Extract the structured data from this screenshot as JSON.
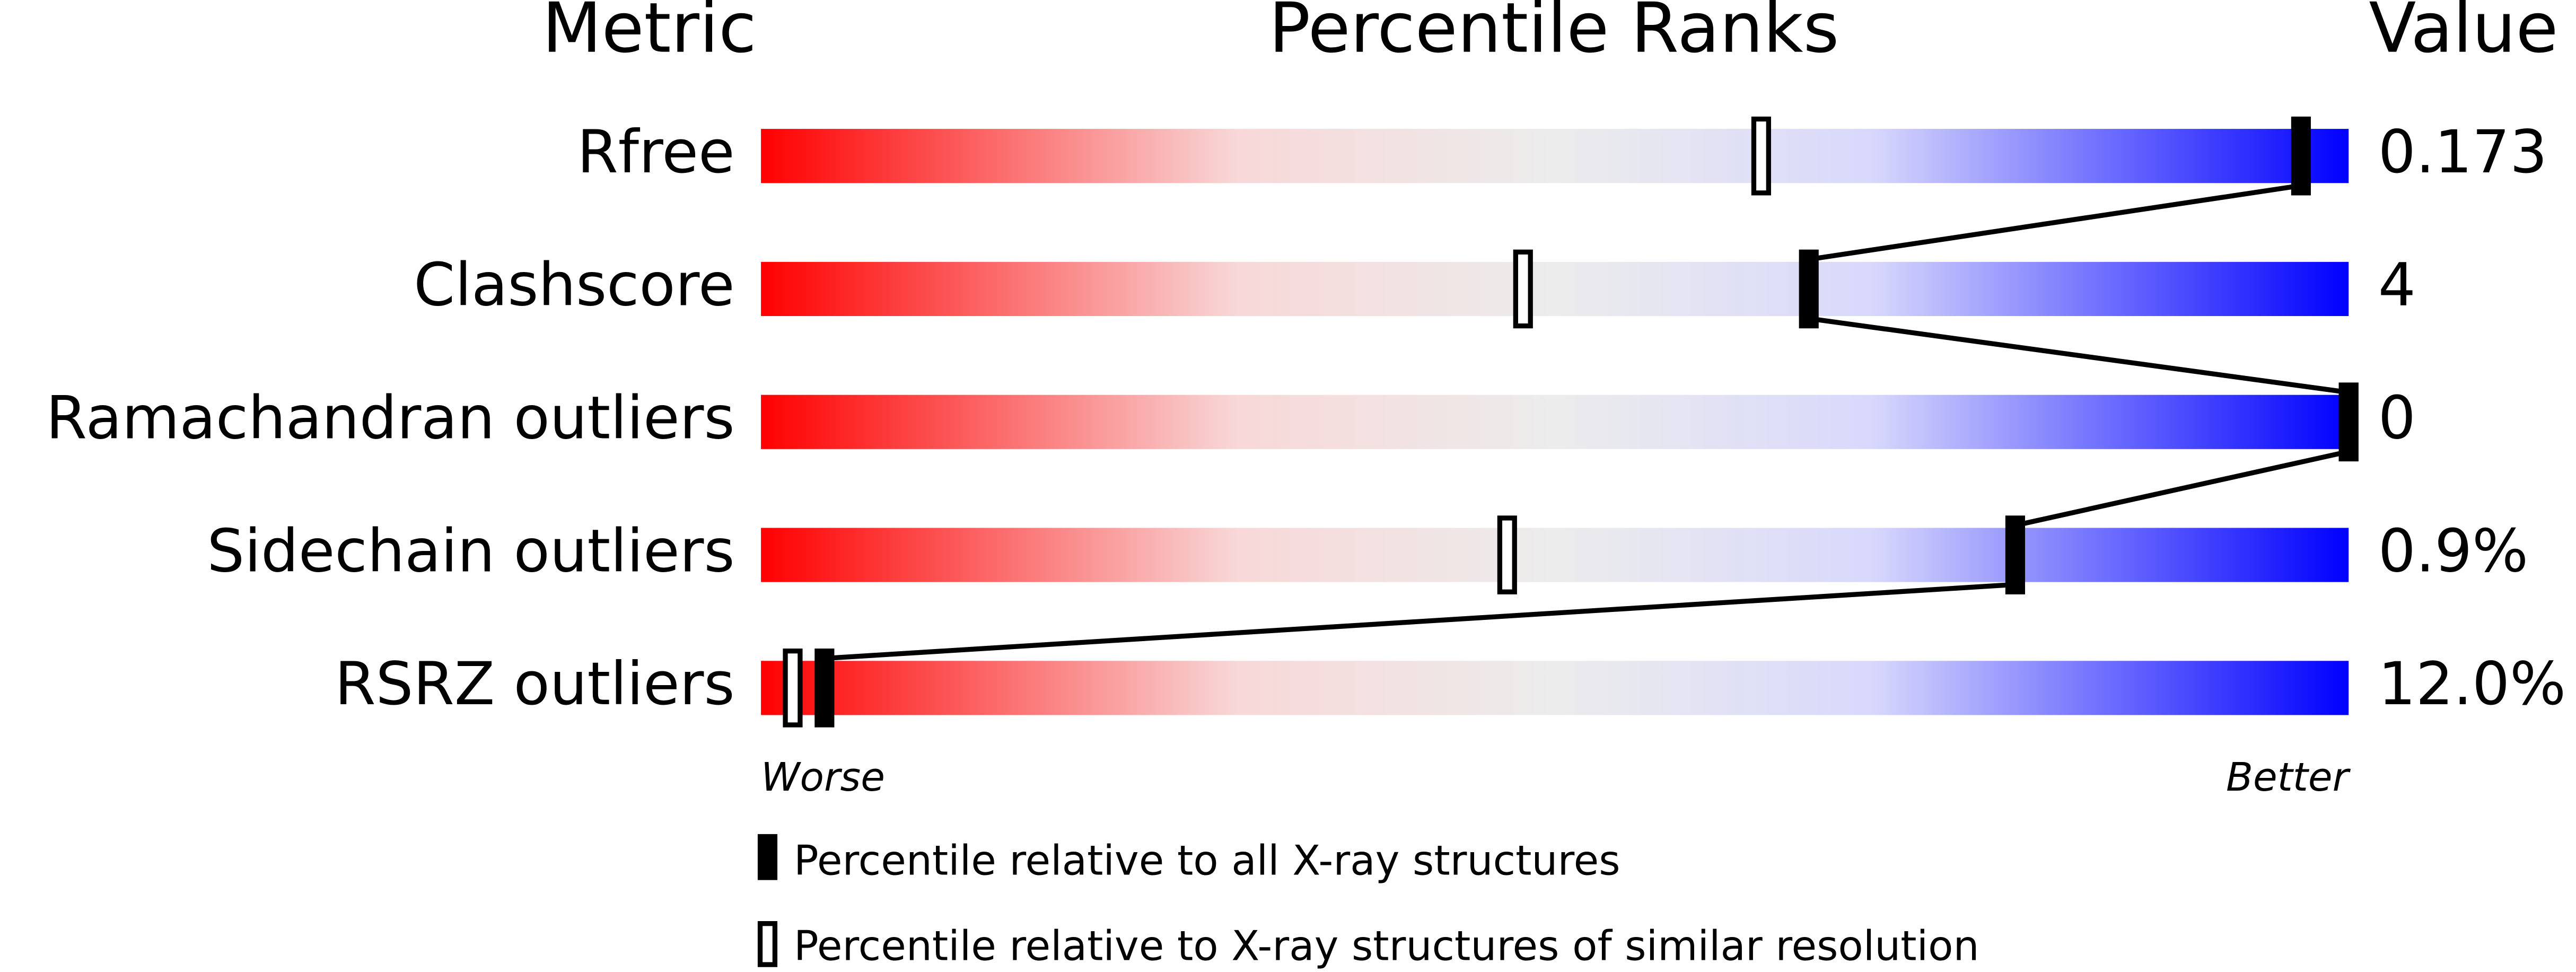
{
  "chart_data": {
    "type": "percentile",
    "headers": [
      "Metric",
      "Percentile Ranks",
      "Value"
    ],
    "categories": [
      "Rfree",
      "Clashscore",
      "Ramachandran outliers",
      "Sidechain outliers",
      "RSRZ outliers"
    ],
    "metric_values": [
      "0.173",
      "4",
      "0",
      "0.9%",
      "12.0%"
    ],
    "series": [
      {
        "name": "Percentile relative to all X-ray structures",
        "color": "#000000",
        "values": [
          97,
          66,
          100,
          79,
          4
        ]
      },
      {
        "name": "Percentile relative to X-ray structures of similar resolution",
        "color": "#ffffff",
        "values": [
          63,
          48,
          100,
          47,
          2
        ]
      }
    ],
    "xlim": [
      0,
      100
    ],
    "worse_label": "Worse",
    "better_label": "Better"
  }
}
